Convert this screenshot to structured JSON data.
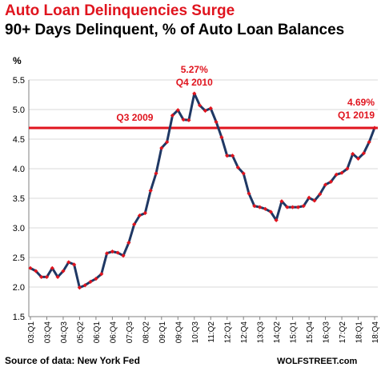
{
  "header": {
    "title": "Auto Loan Delinquencies Surge",
    "subtitle": "90+ Days Delinquent, % of Auto Loan Balances"
  },
  "footer": {
    "source": "Source of data: New York Fed",
    "credit": "WOLFSTREET.com"
  },
  "colors": {
    "title": "#e0141e",
    "line": "#1f3864",
    "markers": "#e0141e",
    "reference_line": "#e0141e",
    "gridline": "#d9d9d9"
  },
  "chart_data": {
    "type": "line",
    "title": "Auto Loan Delinquencies Surge",
    "subtitle": "90+ Days Delinquent, % of Auto Loan Balances",
    "ylabel": "%",
    "ylim": [
      1.5,
      5.5
    ],
    "yticks": [
      "1.5",
      "2.0",
      "2.5",
      "3.0",
      "3.5",
      "4.0",
      "4.5",
      "5.0",
      "5.5"
    ],
    "grid": "horizontal",
    "x_tick_labels": [
      "03:Q1",
      "03:Q4",
      "04:Q3",
      "05:Q2",
      "06:Q1",
      "06:Q4",
      "07:Q3",
      "08:Q2",
      "09:Q1",
      "09:Q4",
      "10:Q3",
      "11:Q2",
      "12:Q1",
      "12:Q4",
      "13:Q3",
      "14:Q2",
      "15:Q1",
      "15:Q4",
      "16:Q3",
      "17:Q2",
      "18:Q1",
      "18:Q4"
    ],
    "series": [
      {
        "values": [
          2.32,
          2.27,
          2.17,
          2.17,
          2.32,
          2.17,
          2.27,
          2.42,
          2.38,
          1.99,
          2.03,
          2.09,
          2.14,
          2.22,
          2.57,
          2.6,
          2.58,
          2.53,
          2.75,
          3.06,
          3.21,
          3.25,
          3.63,
          3.92,
          4.35,
          4.45,
          4.9,
          4.99,
          4.83,
          4.82,
          5.27,
          5.07,
          4.98,
          5.02,
          4.79,
          4.53,
          4.22,
          4.22,
          4.02,
          3.92,
          3.58,
          3.37,
          3.35,
          3.32,
          3.27,
          3.13,
          3.45,
          3.35,
          3.35,
          3.35,
          3.37,
          3.51,
          3.46,
          3.57,
          3.73,
          3.78,
          3.9,
          3.93,
          4.0,
          4.25,
          4.17,
          4.26,
          4.45,
          4.69
        ]
      }
    ],
    "reference_line": {
      "value": 4.69
    },
    "annotations": [
      {
        "text_line1": "5.27%",
        "text_line2": "Q4 2010"
      },
      {
        "text_line1": "Q3 2009"
      },
      {
        "text_line1": "4.69%",
        "text_line2": "Q1 2019"
      }
    ]
  }
}
